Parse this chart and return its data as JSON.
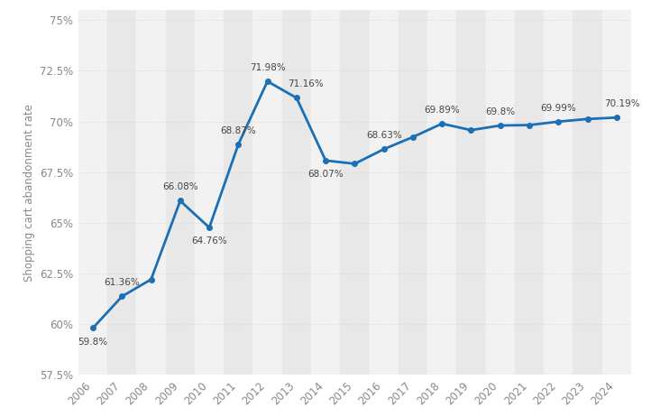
{
  "years": [
    2006,
    2007,
    2008,
    2009,
    2010,
    2011,
    2012,
    2013,
    2014,
    2015,
    2016,
    2017,
    2018,
    2019,
    2020,
    2021,
    2022,
    2023,
    2024
  ],
  "values": [
    59.8,
    61.36,
    62.2,
    66.08,
    64.76,
    68.87,
    71.98,
    71.16,
    68.07,
    67.91,
    68.63,
    69.23,
    69.89,
    69.57,
    69.8,
    69.82,
    69.99,
    70.12,
    70.19
  ],
  "labels": [
    "59.8%",
    "61.36%",
    "",
    "66.08%",
    "64.76%",
    "68.87%",
    "71.98%",
    "71.16%",
    "68.07%",
    "",
    "68.63%",
    "",
    "69.89%",
    "",
    "69.8%",
    "",
    "69.99%",
    "",
    "70.19%"
  ],
  "label_offsets_x": [
    0,
    0,
    0,
    0,
    0,
    0,
    0,
    0.3,
    0,
    0,
    0,
    0,
    0,
    0,
    0,
    0,
    0,
    0,
    0.2
  ],
  "label_offsets_y": [
    -0.9,
    0.45,
    0,
    0.45,
    -0.9,
    0.45,
    0.45,
    0.45,
    -0.9,
    0,
    0.45,
    0,
    0.45,
    0,
    0.45,
    0,
    0.45,
    0,
    0.45
  ],
  "line_color": "#1a6fb5",
  "line_width": 2.0,
  "marker_size": 4,
  "ylabel": "Shopping cart abandonment rate",
  "ylim": [
    57.5,
    75.5
  ],
  "yticks": [
    57.5,
    60.0,
    62.5,
    65.0,
    67.5,
    70.0,
    72.5,
    75.0
  ],
  "ytick_labels": [
    "57.5%",
    "60%",
    "62.5%",
    "65%",
    "67.5%",
    "70%",
    "72.5%",
    "75%"
  ],
  "background_color": "#ffffff",
  "col_band_colors": [
    "#f2f2f2",
    "#e8e8e8"
  ],
  "grid_color": "#d9d9d9",
  "label_fontsize": 7.5,
  "axis_fontsize": 8.5,
  "ylabel_fontsize": 8.5,
  "tick_color": "#888888"
}
